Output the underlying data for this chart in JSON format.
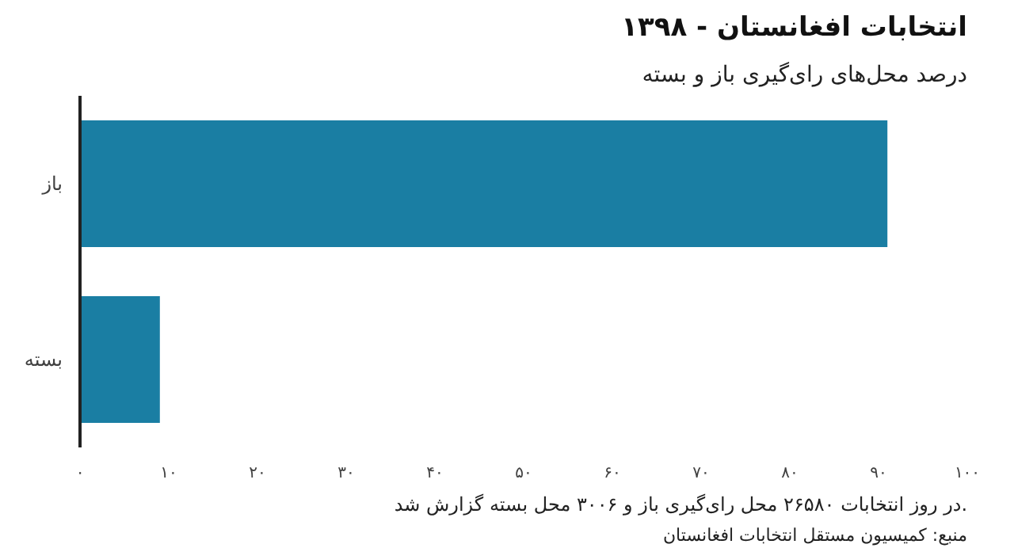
{
  "chart_data": {
    "type": "bar",
    "orientation": "horizontal",
    "title": "انتخابات افغانستان - ۱۳۹۸",
    "subtitle": "درصد محل‌های رای‌گیری باز و بسته",
    "categories": [
      "باز",
      "بسته"
    ],
    "values": [
      91,
      9
    ],
    "color": "#1a7ea3",
    "xlim": [
      0,
      100
    ],
    "xticks": [
      {
        "value": 0,
        "label": "۰"
      },
      {
        "value": 10,
        "label": "۱۰"
      },
      {
        "value": 20,
        "label": "۲۰"
      },
      {
        "value": 30,
        "label": "۳۰"
      },
      {
        "value": 40,
        "label": "۴۰"
      },
      {
        "value": 50,
        "label": "۵۰"
      },
      {
        "value": 60,
        "label": "۶۰"
      },
      {
        "value": 70,
        "label": "۷۰"
      },
      {
        "value": 80,
        "label": "۸۰"
      },
      {
        "value": 90,
        "label": "۹۰"
      },
      {
        "value": 100,
        "label": "۱۰۰"
      }
    ],
    "grid": false,
    "annotations": [
      "در روز انتخابات ۲۶۵۸۰ محل رای‌گیری باز و ۳۰۰۶ محل بسته گزارش شد.",
      "منبع: کمیسیون مستقل انتخابات افغانستان"
    ]
  }
}
